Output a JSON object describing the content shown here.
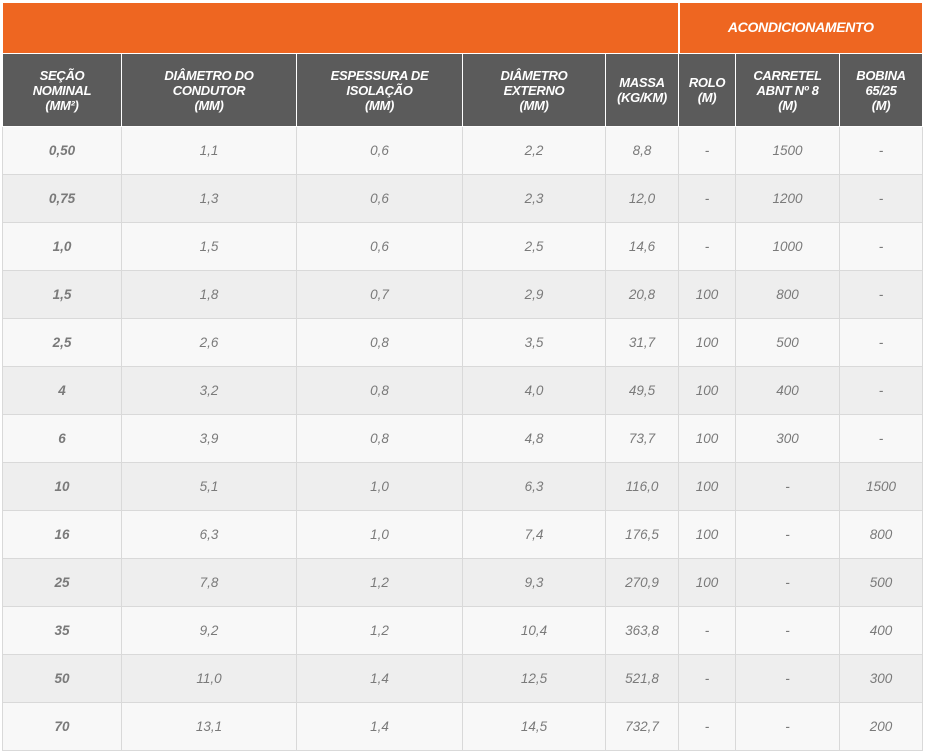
{
  "table": {
    "group_header": {
      "title": "ACONDICIONAMENTO"
    },
    "columns": [
      {
        "key": "secao",
        "lines": [
          "SEÇÃO",
          "NOMINAL",
          "(MM²)"
        ]
      },
      {
        "key": "diametro_condutor",
        "lines": [
          "DIÂMETRO DO",
          "CONDUTOR",
          "(MM)"
        ]
      },
      {
        "key": "espessura_isolacao",
        "lines": [
          "ESPESSURA DE",
          "ISOLAÇÃO",
          "(MM)"
        ]
      },
      {
        "key": "diametro_externo",
        "lines": [
          "DIÂMETRO",
          "EXTERNO",
          "(MM)"
        ]
      },
      {
        "key": "massa",
        "lines": [
          "MASSA",
          "(KG/KM)"
        ]
      },
      {
        "key": "rolo",
        "lines": [
          "ROLO",
          "(M)"
        ]
      },
      {
        "key": "carretel",
        "lines": [
          "CARRETEL",
          "ABNT Nº 8",
          "(M)"
        ]
      },
      {
        "key": "bobina",
        "lines": [
          "BOBINA",
          "65/25",
          "(M)"
        ]
      }
    ],
    "rows": [
      [
        "0,50",
        "1,1",
        "0,6",
        "2,2",
        "8,8",
        "-",
        "1500",
        "-"
      ],
      [
        "0,75",
        "1,3",
        "0,6",
        "2,3",
        "12,0",
        "-",
        "1200",
        "-"
      ],
      [
        "1,0",
        "1,5",
        "0,6",
        "2,5",
        "14,6",
        "-",
        "1000",
        "-"
      ],
      [
        "1,5",
        "1,8",
        "0,7",
        "2,9",
        "20,8",
        "100",
        "800",
        "-"
      ],
      [
        "2,5",
        "2,6",
        "0,8",
        "3,5",
        "31,7",
        "100",
        "500",
        "-"
      ],
      [
        "4",
        "3,2",
        "0,8",
        "4,0",
        "49,5",
        "100",
        "400",
        "-"
      ],
      [
        "6",
        "3,9",
        "0,8",
        "4,8",
        "73,7",
        "100",
        "300",
        "-"
      ],
      [
        "10",
        "5,1",
        "1,0",
        "6,3",
        "116,0",
        "100",
        "-",
        "1500"
      ],
      [
        "16",
        "6,3",
        "1,0",
        "7,4",
        "176,5",
        "100",
        "-",
        "800"
      ],
      [
        "25",
        "7,8",
        "1,2",
        "9,3",
        "270,9",
        "100",
        "-",
        "500"
      ],
      [
        "35",
        "9,2",
        "1,2",
        "10,4",
        "363,8",
        "-",
        "-",
        "400"
      ],
      [
        "50",
        "11,0",
        "1,4",
        "12,5",
        "521,8",
        "-",
        "-",
        "300"
      ],
      [
        "70",
        "13,1",
        "1,4",
        "14,5",
        "732,7",
        "-",
        "-",
        "200"
      ]
    ]
  },
  "colors": {
    "group_header_bg": "#ee6621",
    "column_header_bg": "#5b5b5b",
    "row_odd_bg": "#f8f8f8",
    "row_even_bg": "#eeeeee",
    "cell_text": "#7a7a7a"
  }
}
